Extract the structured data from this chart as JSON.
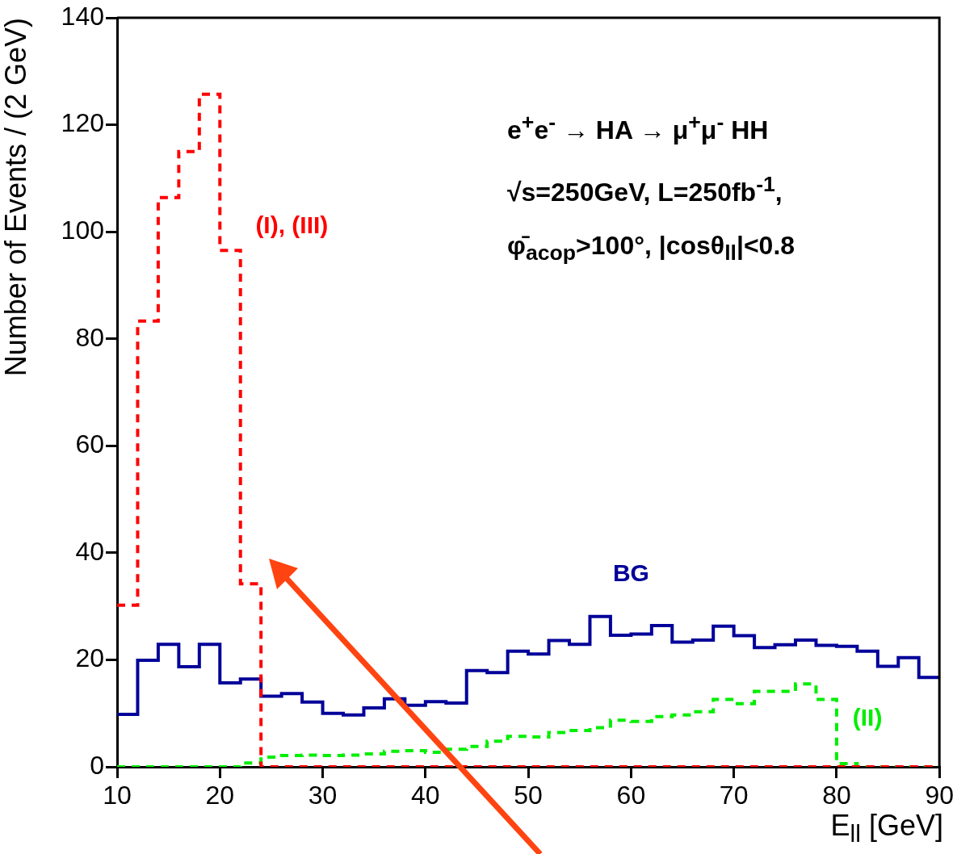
{
  "chart_data": {
    "type": "histogram",
    "xlabel": "E$_{ll}$ [GeV]",
    "ylabel": "Number of Events / (2 GeV)",
    "annotations": [
      "e$^{+}$e$^{-}$ → HA → μ$^{+}$μ$^{-}$ HH",
      "√s=250GeV, L=250fb$^{-1}$,",
      "φ̄$_{acop}$>100°, |cosθ$_{ll}$|<0.8"
    ],
    "bins": [
      10,
      12,
      14,
      16,
      18,
      20,
      22,
      24,
      26,
      28,
      30,
      32,
      34,
      36,
      38,
      40,
      42,
      44,
      46,
      48,
      50,
      52,
      54,
      56,
      58,
      60,
      62,
      64,
      66,
      68,
      70,
      72,
      74,
      76,
      78,
      80,
      82,
      84,
      86,
      88,
      90
    ],
    "series": [
      {
        "name": "(I), (III)",
        "color": "#ff0000",
        "line_style": "dashed",
        "values": [
          30.2,
          83.3,
          106.4,
          115,
          125.7,
          96.5,
          34.2,
          0,
          0,
          0,
          0,
          0,
          0,
          0,
          0,
          0,
          0,
          0,
          0,
          0,
          0,
          0,
          0,
          0,
          0,
          0,
          0,
          0,
          0,
          0,
          0,
          0,
          0,
          0,
          0,
          0,
          0,
          0,
          0,
          0
        ]
      },
      {
        "name": "(II)",
        "color": "#00ee00",
        "line_style": "dashed",
        "values": [
          0,
          0,
          0,
          0,
          0,
          0,
          0.7,
          1.8,
          2.1,
          2.2,
          2.1,
          2.2,
          2.4,
          2.9,
          3.0,
          2.7,
          3.3,
          3.8,
          4.8,
          5.7,
          5.6,
          6.4,
          6.8,
          7.3,
          8.7,
          8.5,
          9.4,
          9.7,
          10.3,
          12.6,
          11.8,
          14.1,
          14.1,
          15.5,
          12.6,
          0.6,
          0,
          0,
          0,
          0
        ]
      },
      {
        "name": "BG",
        "color": "#000099",
        "line_style": "solid",
        "values": [
          9.8,
          19.9,
          22.9,
          18.7,
          22.9,
          15.7,
          16.4,
          13.2,
          13.7,
          12.1,
          10.0,
          9.7,
          11.0,
          12.7,
          11.5,
          12.2,
          11.9,
          18.0,
          17.6,
          21.6,
          21.1,
          23.6,
          22.9,
          28.1,
          24.6,
          24.8,
          26.4,
          23.3,
          23.7,
          26.3,
          24.5,
          22.3,
          22.8,
          23.7,
          22.7,
          22.5,
          21.6,
          18.8,
          20.4,
          16.7
        ]
      }
    ],
    "xlim": [
      10,
      90
    ],
    "xticks": [
      10,
      20,
      30,
      40,
      50,
      60,
      70,
      80,
      90
    ],
    "ylim": [
      0,
      140
    ],
    "yticks": [
      0,
      20,
      40,
      60,
      80,
      100,
      120,
      140
    ]
  }
}
